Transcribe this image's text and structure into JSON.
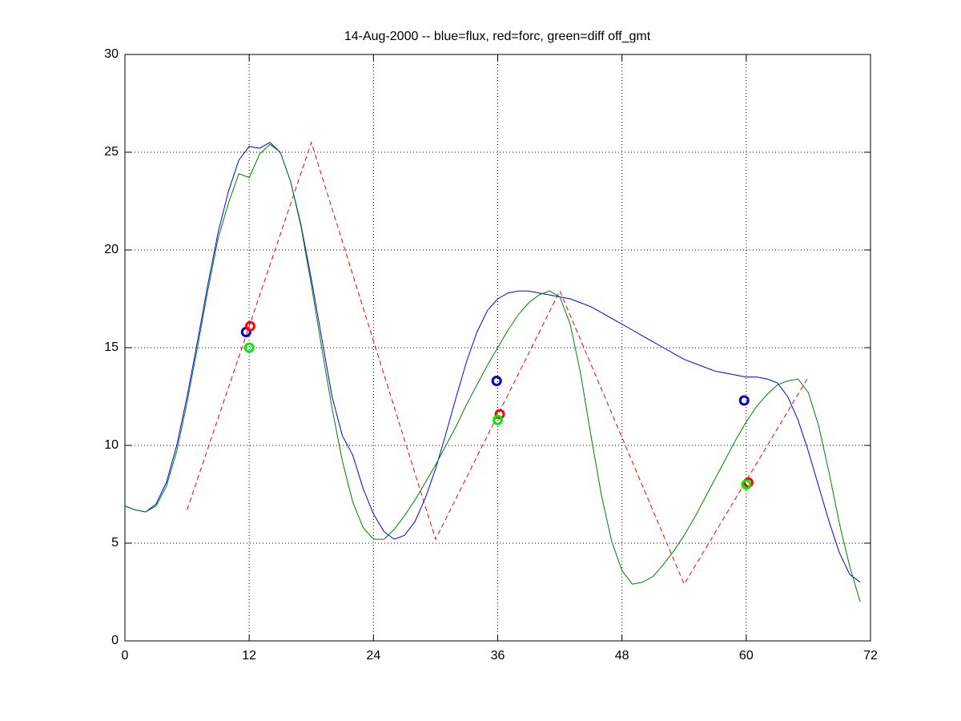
{
  "chart_data": {
    "type": "line",
    "title": "14-Aug-2000 -- blue=flux, red=forc, green=diff off_gmt",
    "x": [
      0,
      1,
      2,
      3,
      4,
      5,
      6,
      7,
      8,
      9,
      10,
      11,
      12,
      13,
      14,
      15,
      16,
      17,
      18,
      19,
      20,
      21,
      22,
      23,
      24,
      25,
      26,
      27,
      28,
      29,
      30,
      31,
      32,
      33,
      34,
      35,
      36,
      37,
      38,
      39,
      40,
      41,
      42,
      43,
      44,
      45,
      46,
      47,
      48,
      49,
      50,
      51,
      52,
      53,
      54,
      55,
      56,
      57,
      58,
      59,
      60,
      61,
      62,
      63,
      64,
      65,
      66,
      67,
      68,
      69,
      70,
      71
    ],
    "series": [
      {
        "color": "#0000ff",
        "style": "solid",
        "values": [
          6.9,
          6.7,
          6.6,
          7.0,
          8.1,
          10.0,
          12.5,
          15.3,
          18.2,
          20.9,
          23.0,
          24.6,
          25.3,
          25.2,
          25.5,
          25.0,
          23.5,
          21.3,
          18.5,
          15.5,
          12.5,
          10.5,
          9.5,
          7.8,
          6.5,
          5.6,
          5.2,
          5.4,
          6.1,
          7.3,
          8.8,
          10.6,
          12.5,
          14.3,
          15.8,
          16.9,
          17.5,
          17.8,
          17.9,
          17.9,
          17.8,
          17.7,
          17.6,
          17.5,
          17.3,
          17.1,
          16.8,
          16.5,
          16.2,
          15.9,
          15.6,
          15.3,
          15.0,
          14.7,
          14.4,
          14.2,
          14.0,
          13.8,
          13.7,
          13.6,
          13.5,
          13.5,
          13.4,
          13.2,
          12.5,
          11.3,
          9.7,
          7.9,
          6.1,
          4.5,
          3.4,
          3.0
        ]
      },
      {
        "color": "#ff0000",
        "style": "dashed",
        "x": [
          6,
          18,
          30,
          42,
          54,
          66
        ],
        "values": [
          6.7,
          25.5,
          5.2,
          17.9,
          2.9,
          13.5
        ]
      },
      {
        "color": "#008000",
        "style": "solid",
        "values": [
          6.9,
          6.7,
          6.6,
          6.9,
          7.9,
          9.7,
          12.2,
          15.0,
          17.9,
          20.6,
          22.4,
          23.9,
          23.7,
          24.9,
          25.4,
          25.0,
          23.5,
          21.2,
          18.2,
          15.0,
          11.9,
          9.2,
          7.1,
          5.8,
          5.2,
          5.2,
          5.7,
          6.4,
          7.2,
          8.1,
          9.0,
          10.0,
          11.0,
          12.1,
          13.1,
          14.1,
          15.0,
          15.9,
          16.7,
          17.3,
          17.7,
          17.9,
          17.6,
          16.2,
          13.7,
          10.5,
          7.5,
          5.1,
          3.6,
          2.9,
          3.0,
          3.3,
          3.9,
          4.6,
          5.4,
          6.3,
          7.3,
          8.3,
          9.3,
          10.3,
          11.2,
          12.0,
          12.6,
          13.1,
          13.3,
          13.4,
          12.7,
          11.0,
          8.6,
          6.0,
          3.8,
          2.0
        ]
      }
    ],
    "markers": [
      {
        "color": "#0000cc",
        "x": [
          11.7,
          35.9,
          59.8
        ],
        "y": [
          15.8,
          13.3,
          12.3
        ]
      },
      {
        "color": "#ff0000",
        "x": [
          12.1,
          36.2,
          60.2
        ],
        "y": [
          16.1,
          11.6,
          8.1
        ]
      },
      {
        "color": "#00ee00",
        "x": [
          12.0,
          36.0,
          60.0
        ],
        "y": [
          15.0,
          11.3,
          8.0
        ]
      }
    ],
    "xlim": [
      0,
      72
    ],
    "xticks": [
      0,
      12,
      24,
      36,
      48,
      60,
      72
    ],
    "ylim": [
      0,
      30
    ],
    "yticks": [
      0,
      5,
      10,
      15,
      20,
      25,
      30
    ],
    "grid": true
  }
}
